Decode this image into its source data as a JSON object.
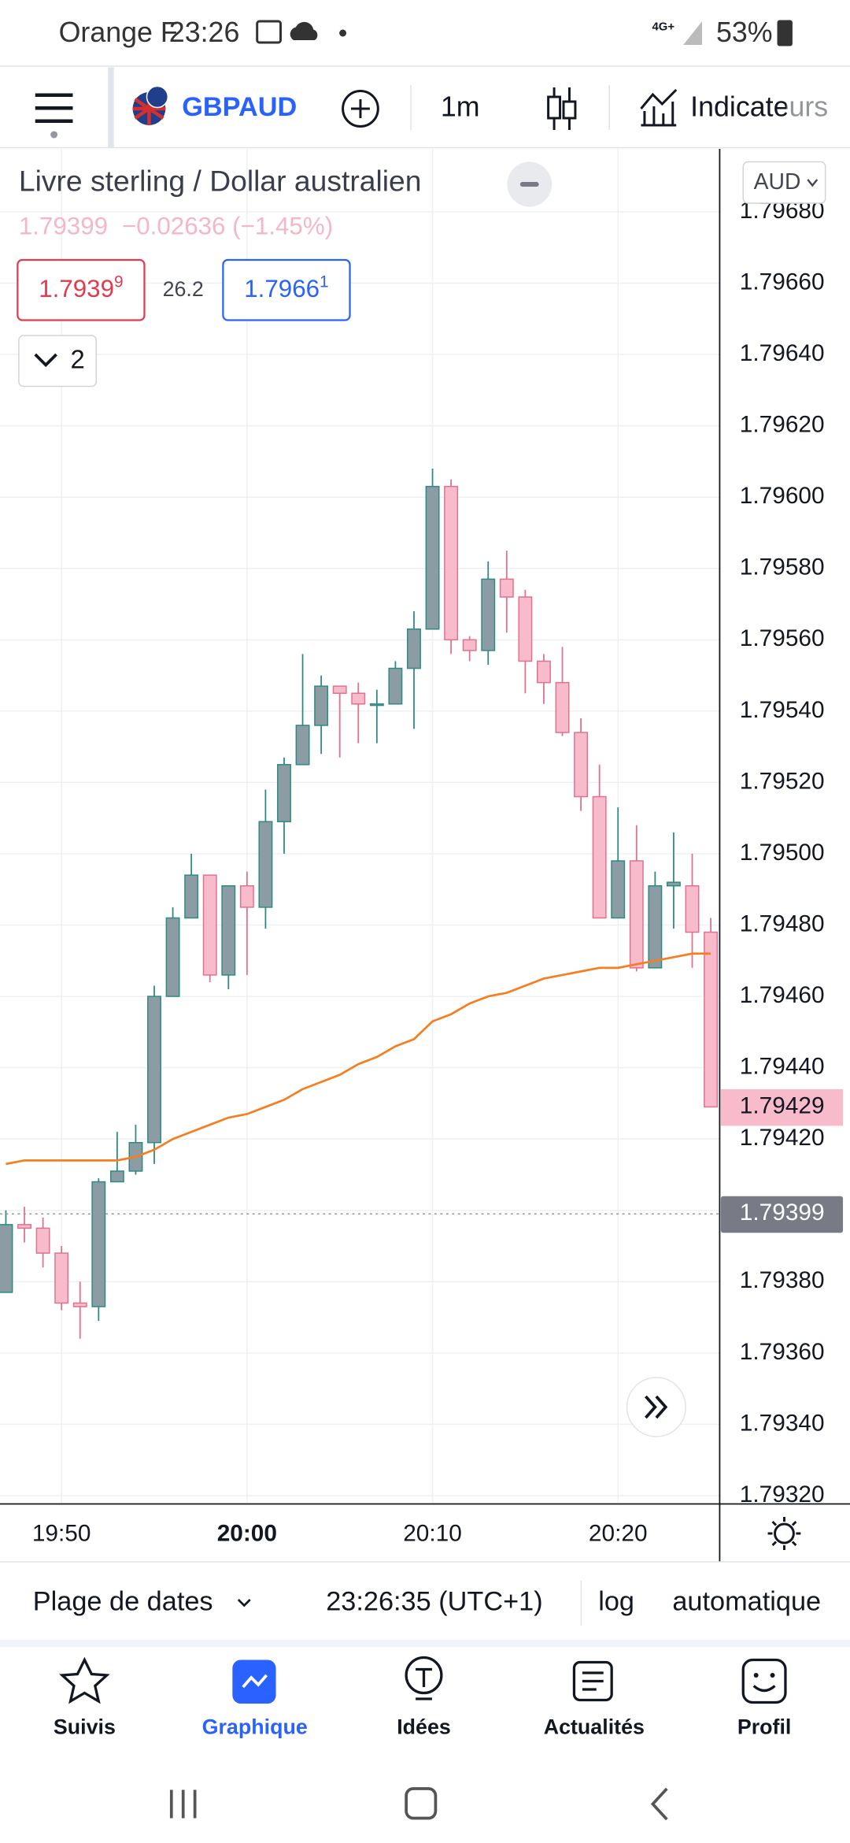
{
  "status_bar": {
    "carrier": "Orange F",
    "time": "23:26",
    "network": "4G+",
    "battery": "53%"
  },
  "toolbar": {
    "symbol": "GBPAUD",
    "interval": "1m",
    "indicators": "Indicateurs"
  },
  "legend": {
    "title": "Livre sterling / Dollar australien",
    "change": "−0.02636 (−1.45%)",
    "bid": "1.7939",
    "bid_sup": "9",
    "spread": "26.2",
    "ask": "1.7966",
    "ask_sup": "1",
    "studies_count": "2"
  },
  "chart_data": {
    "type": "candlestick",
    "currency": "AUD",
    "categories": [
      null,
      null,
      null,
      "19:50",
      null,
      null,
      null,
      null,
      null,
      null,
      null,
      null,
      null,
      "20:00",
      null,
      null,
      null,
      null,
      null,
      null,
      null,
      null,
      null,
      "20:10",
      null,
      null,
      null,
      null,
      null,
      null,
      null,
      null,
      null,
      "20:20",
      null,
      null,
      null,
      null,
      null
    ],
    "open": [
      1.79377,
      1.79396,
      1.79395,
      1.79388,
      1.79374,
      1.79373,
      1.79408,
      1.79411,
      1.79419,
      1.7946,
      1.79482,
      1.79494,
      1.79466,
      1.79491,
      1.79485,
      1.79509,
      1.79525,
      1.79536,
      1.79547,
      1.79545,
      1.79542,
      1.79542,
      1.79552,
      1.79563,
      1.79603,
      1.7956,
      1.79557,
      1.79577,
      1.79572,
      1.79554,
      1.79548,
      1.79534,
      1.79516,
      1.79482,
      1.79498,
      1.79468,
      1.79491,
      1.79491,
      1.79478
    ],
    "high": [
      1.794,
      1.79401,
      1.79398,
      1.7939,
      1.7938,
      1.79409,
      1.79422,
      1.79424,
      1.79463,
      1.79485,
      1.795,
      1.79494,
      1.79491,
      1.79495,
      1.79518,
      1.79527,
      1.79556,
      1.7955,
      1.79547,
      1.79548,
      1.79546,
      1.79554,
      1.79568,
      1.79608,
      1.79605,
      1.79561,
      1.79582,
      1.79585,
      1.79574,
      1.79556,
      1.79558,
      1.79538,
      1.79525,
      1.79513,
      1.79508,
      1.79495,
      1.79506,
      1.795,
      1.79482
    ],
    "low": [
      1.79377,
      1.79391,
      1.79384,
      1.79372,
      1.79364,
      1.79369,
      1.79408,
      1.7941,
      1.79413,
      1.7946,
      1.79482,
      1.79464,
      1.79462,
      1.79466,
      1.79479,
      1.795,
      1.79525,
      1.79528,
      1.79527,
      1.79531,
      1.79531,
      1.79542,
      1.79535,
      1.79563,
      1.79556,
      1.79554,
      1.79553,
      1.79562,
      1.79545,
      1.79542,
      1.79533,
      1.79512,
      1.79482,
      1.79482,
      1.79467,
      1.79468,
      1.79479,
      1.79468,
      1.79429
    ],
    "close": [
      1.79396,
      1.79395,
      1.79388,
      1.79374,
      1.79373,
      1.79408,
      1.79411,
      1.79419,
      1.7946,
      1.79482,
      1.79494,
      1.79466,
      1.79491,
      1.79485,
      1.79509,
      1.79525,
      1.79536,
      1.79547,
      1.79545,
      1.79542,
      1.79542,
      1.79552,
      1.79563,
      1.79603,
      1.7956,
      1.79557,
      1.79577,
      1.79572,
      1.79554,
      1.79548,
      1.79534,
      1.79516,
      1.79482,
      1.79498,
      1.79468,
      1.79491,
      1.79492,
      1.79478,
      1.79429
    ],
    "up_color": "#8b9ca4",
    "up_border": "#2e8b82",
    "down_color": "#f8bbcc",
    "down_border": "#e0728f",
    "moving_average": {
      "color": "#f57f20",
      "values": [
        1.79413,
        1.79414,
        1.79414,
        1.79414,
        1.79414,
        1.79414,
        1.79414,
        1.79415,
        1.79417,
        1.7942,
        1.79422,
        1.79424,
        1.79426,
        1.79427,
        1.79429,
        1.79431,
        1.79434,
        1.79436,
        1.79438,
        1.79441,
        1.79443,
        1.79446,
        1.79448,
        1.79453,
        1.79455,
        1.79458,
        1.7946,
        1.79461,
        1.79463,
        1.79465,
        1.79466,
        1.79467,
        1.79468,
        1.79468,
        1.79469,
        1.7947,
        1.79471,
        1.79472,
        1.79472
      ]
    },
    "reference_price": 1.79399,
    "log_scale": false,
    "grid": true,
    "ylim": [
      1.79318,
      1.79698
    ],
    "yticks": [
      {
        "value": 1.7932,
        "label": "1.79320"
      },
      {
        "value": 1.7934,
        "label": "1.79340"
      },
      {
        "value": 1.7936,
        "label": "1.79360"
      },
      {
        "value": 1.7938,
        "label": "1.79380"
      },
      {
        "value": 1.794,
        "label": "1.79400"
      },
      {
        "value": 1.7942,
        "label": "1.79420"
      },
      {
        "value": 1.7944,
        "label": "1.79440"
      },
      {
        "value": 1.7946,
        "label": "1.79460"
      },
      {
        "value": 1.7948,
        "label": "1.79480"
      },
      {
        "value": 1.795,
        "label": "1.79500"
      },
      {
        "value": 1.7952,
        "label": "1.79520"
      },
      {
        "value": 1.7954,
        "label": "1.79540"
      },
      {
        "value": 1.7956,
        "label": "1.79560"
      },
      {
        "value": 1.7958,
        "label": "1.79580"
      },
      {
        "value": 1.796,
        "label": "1.79600"
      },
      {
        "value": 1.7962,
        "label": "1.79620"
      },
      {
        "value": 1.7964,
        "label": "1.79640"
      },
      {
        "value": 1.7966,
        "label": "1.79660"
      },
      {
        "value": 1.7968,
        "label": "1.79680"
      }
    ]
  },
  "bottom_bar": {
    "date_range": "Plage de dates",
    "clock": "23:26:35 (UTC+1)",
    "log": "log",
    "auto": "automatique"
  },
  "nav": [
    "Suivis",
    "Graphique",
    "Idées",
    "Actualités",
    "Profil"
  ]
}
